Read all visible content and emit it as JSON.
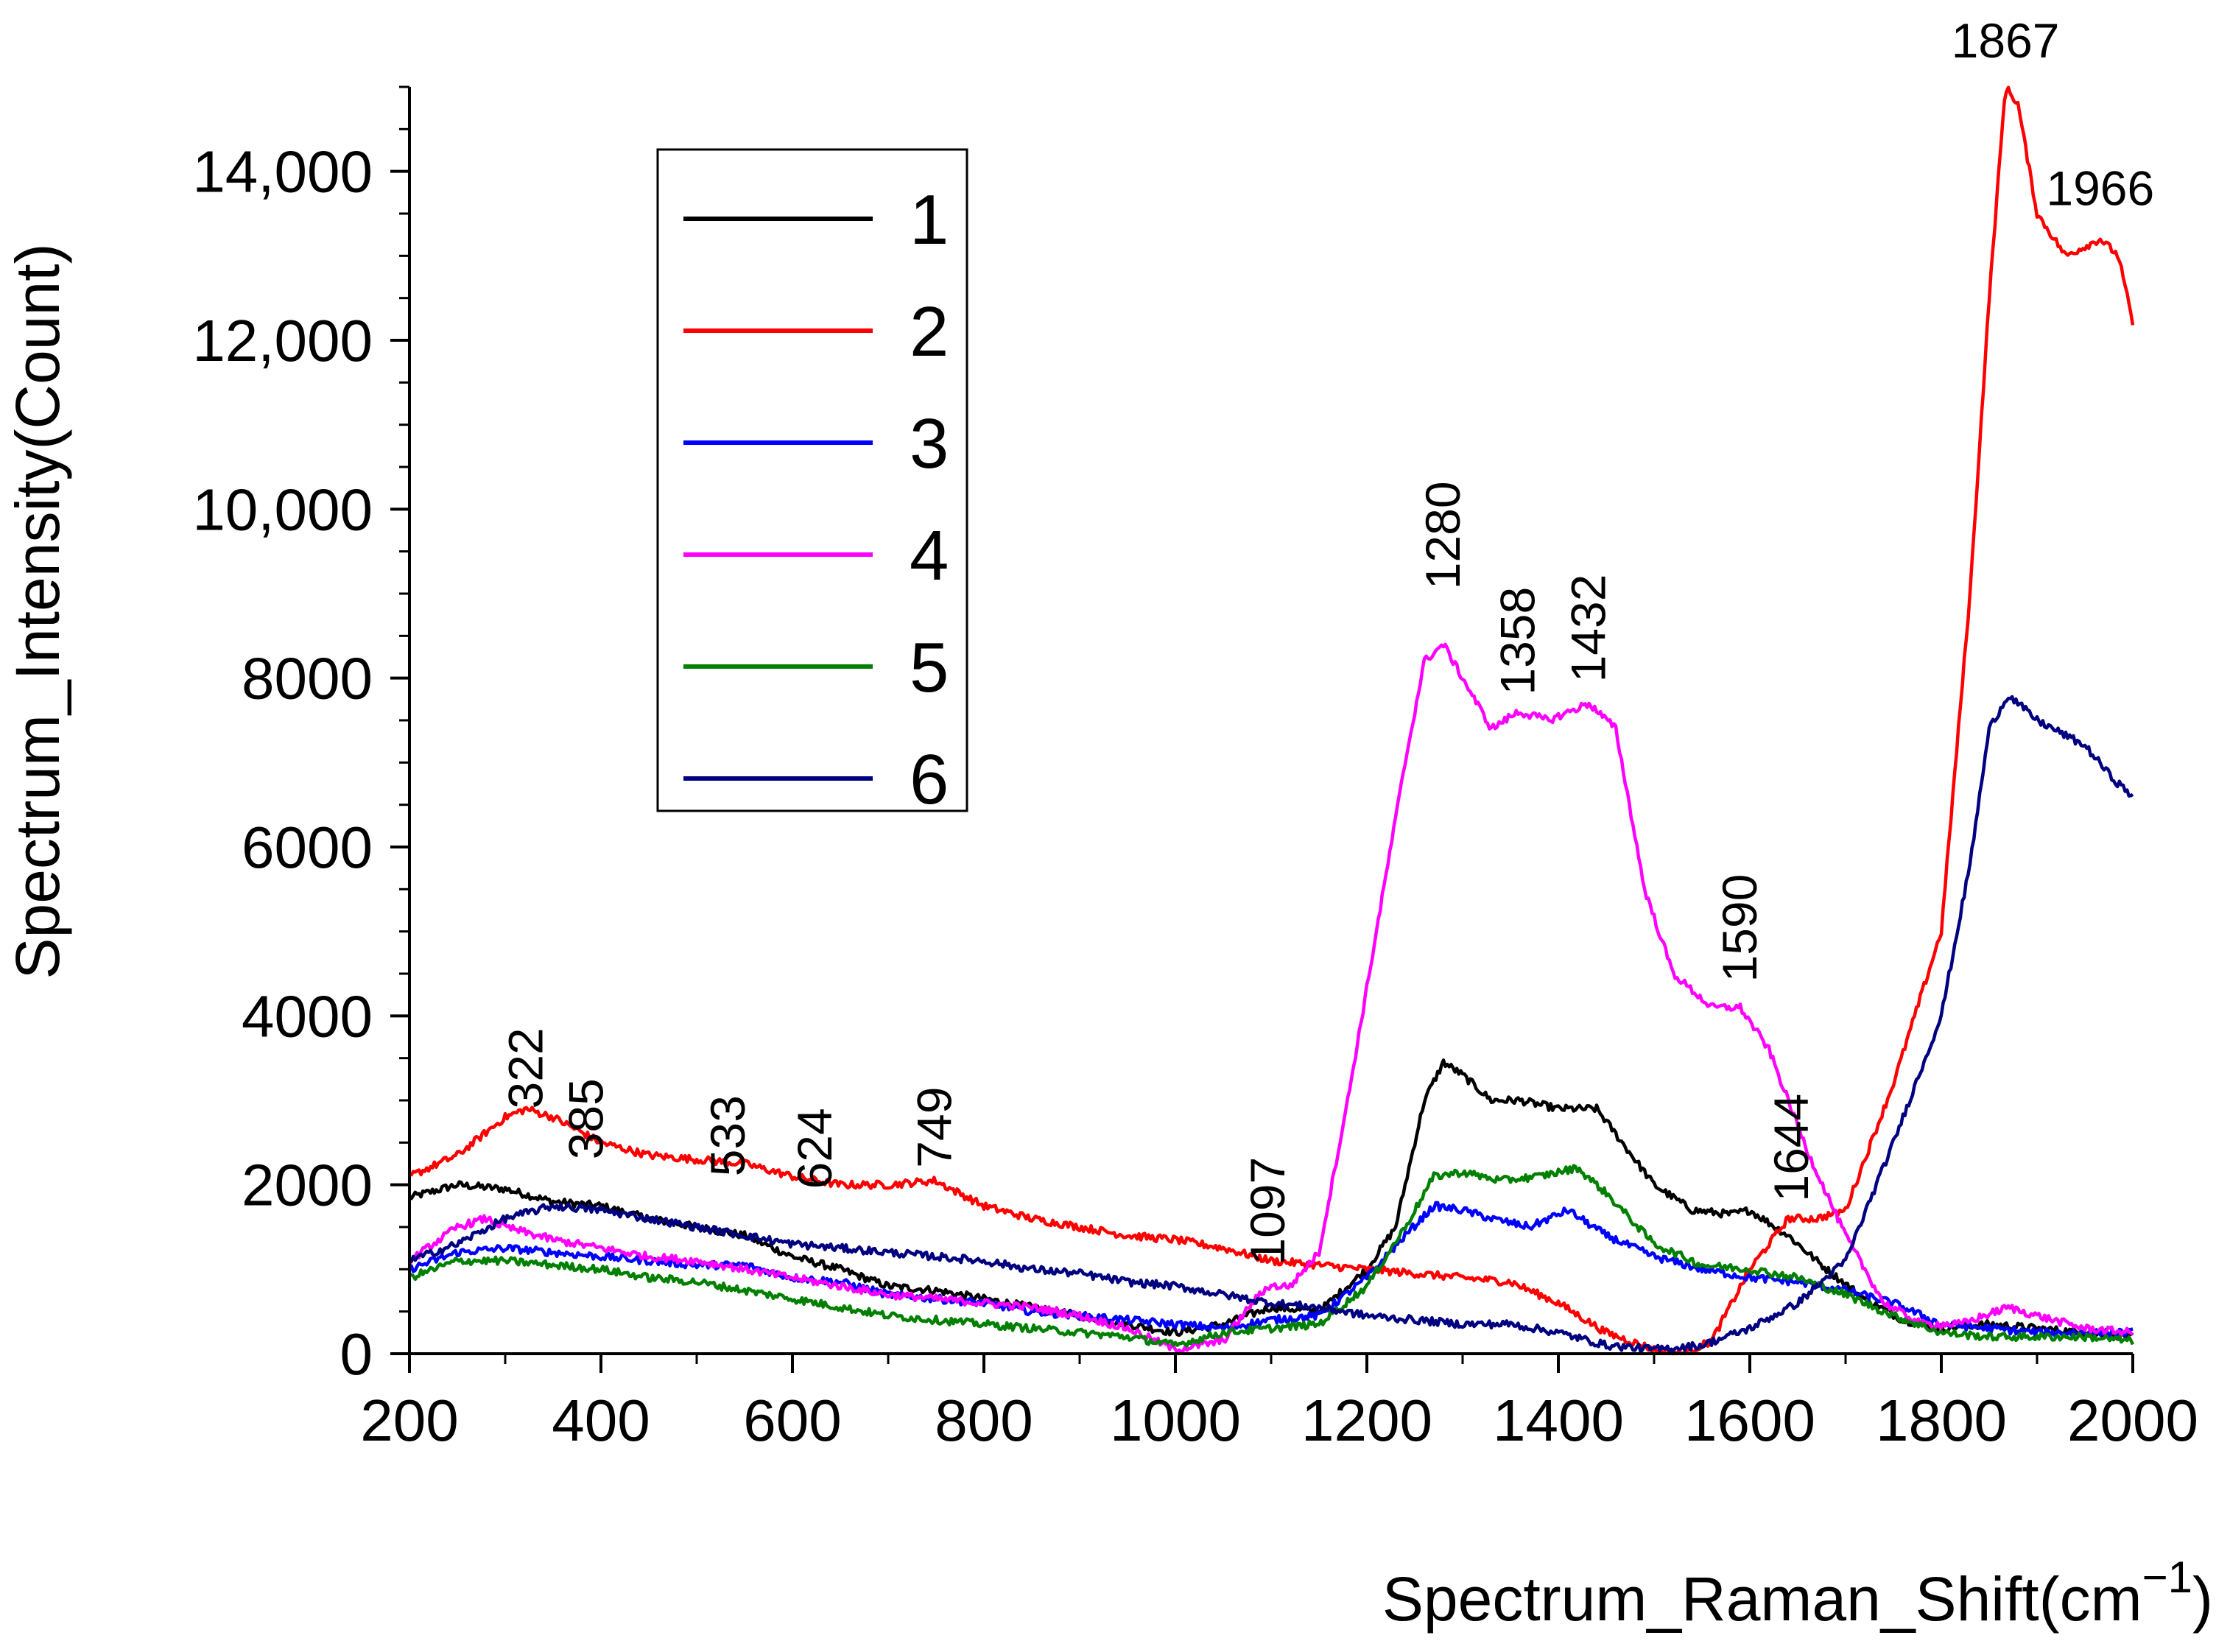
{
  "chart_data": {
    "type": "line",
    "title": "",
    "xlabel": "Spectrum_Raman_Shift(cm",
    "xlabel_sup": "−1",
    "xlabel_close": ")",
    "ylabel": "Spectrum_Intensity(Count)",
    "xlim": [
      200,
      2000
    ],
    "ylim": [
      0,
      15000
    ],
    "grid": false,
    "legend_position": "top-left",
    "xticks": [
      200,
      400,
      600,
      800,
      1000,
      1200,
      1400,
      1600,
      1800,
      2000
    ],
    "xtick_labels": [
      "200",
      "400",
      "600",
      "800",
      "1000",
      "1200",
      "1400",
      "1600",
      "1800",
      "2000"
    ],
    "yticks": [
      0,
      2000,
      4000,
      6000,
      8000,
      10000,
      12000,
      14000
    ],
    "ytick_labels": [
      "0",
      "2000",
      "4000",
      "6000",
      "8000",
      "10,000",
      "12,000",
      "14,000"
    ],
    "series": [
      {
        "name": "1",
        "color": "#000000",
        "x": [
          200,
          250,
          300,
          350,
          400,
          450,
          500,
          550,
          600,
          650,
          700,
          750,
          800,
          850,
          900,
          950,
          1000,
          1050,
          1100,
          1150,
          1200,
          1230,
          1260,
          1280,
          1300,
          1330,
          1360,
          1400,
          1440,
          1460,
          1500,
          1540,
          1580,
          1600,
          1640,
          1680,
          1720,
          1760,
          1800,
          1850,
          1900,
          1950,
          2000
        ],
        "y": [
          1850,
          2000,
          1950,
          1800,
          1750,
          1600,
          1500,
          1400,
          1150,
          1000,
          800,
          750,
          650,
          550,
          450,
          350,
          250,
          350,
          550,
          500,
          1000,
          1500,
          3000,
          3450,
          3300,
          3000,
          3000,
          2900,
          2900,
          2600,
          2000,
          1700,
          1650,
          1700,
          1400,
          1000,
          650,
          400,
          300,
          350,
          300,
          250,
          200
        ]
      },
      {
        "name": "2",
        "color": "#ff0000",
        "x": [
          200,
          250,
          300,
          322,
          350,
          400,
          450,
          500,
          550,
          600,
          650,
          700,
          749,
          800,
          850,
          900,
          950,
          1000,
          1050,
          1100,
          1150,
          1200,
          1250,
          1300,
          1350,
          1400,
          1450,
          1500,
          1530,
          1560,
          1600,
          1640,
          1670,
          1700,
          1750,
          1800,
          1830,
          1850,
          1867,
          1880,
          1900,
          1930,
          1966,
          1985,
          2000
        ],
        "y": [
          2100,
          2350,
          2800,
          2900,
          2800,
          2500,
          2350,
          2300,
          2250,
          2100,
          2000,
          2000,
          2050,
          1750,
          1600,
          1500,
          1400,
          1350,
          1250,
          1100,
          1050,
          1000,
          950,
          900,
          850,
          600,
          250,
          50,
          0,
          150,
          1000,
          1600,
          1600,
          1700,
          3200,
          5000,
          9000,
          12500,
          15000,
          14800,
          13500,
          13000,
          13200,
          13000,
          12200
        ]
      },
      {
        "name": "3",
        "color": "#0000ff",
        "x": [
          200,
          250,
          300,
          350,
          400,
          450,
          500,
          550,
          600,
          650,
          700,
          750,
          800,
          850,
          900,
          950,
          1000,
          1050,
          1100,
          1150,
          1200,
          1240,
          1270,
          1300,
          1330,
          1370,
          1410,
          1450,
          1500,
          1550,
          1600,
          1650,
          1700,
          1750,
          1800,
          1850,
          1900,
          1950,
          2000
        ],
        "y": [
          1000,
          1200,
          1250,
          1200,
          1150,
          1100,
          1050,
          1050,
          900,
          850,
          700,
          650,
          600,
          500,
          450,
          400,
          350,
          300,
          400,
          450,
          900,
          1400,
          1750,
          1700,
          1600,
          1500,
          1700,
          1400,
          1150,
          1000,
          900,
          850,
          750,
          600,
          350,
          300,
          250,
          250,
          250
        ]
      },
      {
        "name": "4",
        "color": "#ff00ff",
        "x": [
          200,
          250,
          280,
          300,
          350,
          400,
          450,
          500,
          550,
          600,
          650,
          700,
          750,
          800,
          850,
          900,
          950,
          1000,
          1050,
          1080,
          1097,
          1120,
          1150,
          1180,
          1210,
          1240,
          1260,
          1280,
          1300,
          1330,
          1358,
          1390,
          1432,
          1460,
          1490,
          1520,
          1560,
          1590,
          1620,
          1660,
          1700,
          1740,
          1780,
          1820,
          1870,
          1900,
          1950,
          2000
        ],
        "y": [
          1100,
          1500,
          1600,
          1500,
          1350,
          1250,
          1150,
          1100,
          1000,
          900,
          800,
          700,
          650,
          600,
          550,
          450,
          300,
          50,
          150,
          600,
          800,
          800,
          1200,
          3000,
          5000,
          7000,
          8200,
          8400,
          8000,
          7400,
          7600,
          7500,
          7700,
          7400,
          5500,
          4500,
          4100,
          4100,
          3600,
          2400,
          1400,
          600,
          350,
          350,
          550,
          450,
          300,
          250
        ]
      },
      {
        "name": "5",
        "color": "#008000",
        "x": [
          200,
          250,
          300,
          350,
          400,
          450,
          500,
          550,
          600,
          650,
          700,
          750,
          800,
          850,
          900,
          950,
          1000,
          1050,
          1100,
          1150,
          1200,
          1240,
          1270,
          1300,
          1340,
          1380,
          1420,
          1450,
          1500,
          1550,
          1600,
          1650,
          1700,
          1750,
          1800,
          1850,
          1900,
          1950,
          2000
        ],
        "y": [
          900,
          1100,
          1100,
          1050,
          1000,
          900,
          850,
          750,
          650,
          550,
          450,
          400,
          350,
          300,
          250,
          200,
          100,
          250,
          300,
          350,
          800,
          1500,
          2100,
          2150,
          2050,
          2100,
          2200,
          1900,
          1300,
          1050,
          1000,
          900,
          700,
          450,
          250,
          200,
          200,
          200,
          150
        ]
      },
      {
        "name": "6",
        "color": "#000080",
        "x": [
          200,
          250,
          300,
          350,
          400,
          450,
          500,
          550,
          600,
          650,
          700,
          750,
          800,
          850,
          900,
          950,
          1000,
          1050,
          1100,
          1150,
          1200,
          1250,
          1300,
          1350,
          1400,
          1450,
          1500,
          1550,
          1600,
          1650,
          1700,
          1750,
          1800,
          1830,
          1850,
          1870,
          1900,
          1950,
          1980,
          2000
        ],
        "y": [
          1100,
          1300,
          1600,
          1750,
          1700,
          1600,
          1500,
          1400,
          1300,
          1250,
          1200,
          1150,
          1100,
          1000,
          950,
          850,
          800,
          700,
          600,
          550,
          450,
          400,
          350,
          350,
          250,
          100,
          50,
          100,
          300,
          600,
          1100,
          2500,
          4000,
          5800,
          7400,
          7800,
          7500,
          7200,
          6800,
          6600
        ]
      }
    ],
    "annotations": [
      {
        "text": "322",
        "x": 322,
        "y": 2900,
        "rotation": -90
      },
      {
        "text": "385",
        "x": 385,
        "y": 2300,
        "rotation": -90
      },
      {
        "text": "533",
        "x": 533,
        "y": 2100,
        "rotation": -90
      },
      {
        "text": "624",
        "x": 624,
        "y": 1950,
        "rotation": -90
      },
      {
        "text": "749",
        "x": 749,
        "y": 2200,
        "rotation": -90
      },
      {
        "text": "1097",
        "x": 1097,
        "y": 1050,
        "rotation": -90
      },
      {
        "text": "1280",
        "x": 1280,
        "y": 9050,
        "rotation": -90
      },
      {
        "text": "1358",
        "x": 1358,
        "y": 7800,
        "rotation": -90
      },
      {
        "text": "1432",
        "x": 1432,
        "y": 7950,
        "rotation": -90
      },
      {
        "text": "1590",
        "x": 1590,
        "y": 4400,
        "rotation": -90
      },
      {
        "text": "1644",
        "x": 1644,
        "y": 1800,
        "rotation": -90
      },
      {
        "text": "1867",
        "x": 1867,
        "y": 15350,
        "rotation": 0
      },
      {
        "text": "1966",
        "x": 1966,
        "y": 13600,
        "rotation": 0
      }
    ]
  }
}
